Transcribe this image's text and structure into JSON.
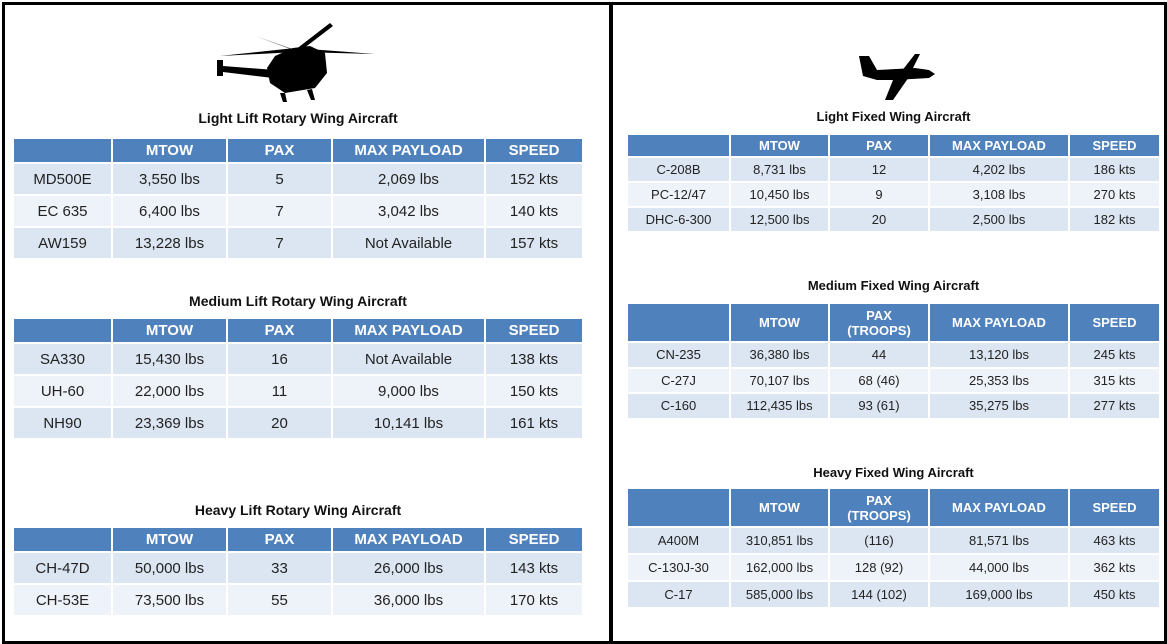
{
  "left": {
    "tables": [
      {
        "title": "Light Lift Rotary Wing Aircraft",
        "headers": [
          "MTOW",
          "PAX",
          "MAX PAYLOAD",
          "SPEED"
        ],
        "rows": [
          [
            "MD500E",
            "3,550 lbs",
            "5",
            "2,069 lbs",
            "152 kts"
          ],
          [
            "EC 635",
            "6,400 lbs",
            "7",
            "3,042 lbs",
            "140 kts"
          ],
          [
            "AW159",
            "13,228 lbs",
            "7",
            "Not Available",
            "157 kts"
          ]
        ]
      },
      {
        "title": "Medium Lift Rotary Wing Aircraft",
        "headers": [
          "MTOW",
          "PAX",
          "MAX PAYLOAD",
          "SPEED"
        ],
        "rows": [
          [
            "SA330",
            "15,430 lbs",
            "16",
            "Not Available",
            "138 kts"
          ],
          [
            "UH-60",
            "22,000 lbs",
            "11",
            "9,000 lbs",
            "150 kts"
          ],
          [
            "NH90",
            "23,369 lbs",
            "20",
            "10,141 lbs",
            "161 kts"
          ]
        ]
      },
      {
        "title": "Heavy Lift Rotary Wing Aircraft",
        "headers": [
          "MTOW",
          "PAX",
          "MAX PAYLOAD",
          "SPEED"
        ],
        "rows": [
          [
            "CH-47D",
            "50,000 lbs",
            "33",
            "26,000 lbs",
            "143 kts"
          ],
          [
            "CH-53E",
            "73,500 lbs",
            "55",
            "36,000 lbs",
            "170 kts"
          ]
        ]
      }
    ]
  },
  "right": {
    "tables": [
      {
        "title": "Light Fixed Wing Aircraft",
        "headers": [
          "MTOW",
          "PAX",
          "MAX PAYLOAD",
          "SPEED"
        ],
        "rows": [
          [
            "C-208B",
            "8,731 lbs",
            "12",
            "4,202 lbs",
            "186 kts"
          ],
          [
            "PC-12/47",
            "10,450 lbs",
            "9",
            "3,108 lbs",
            "270 kts"
          ],
          [
            "DHC-6-300",
            "12,500 lbs",
            "20",
            "2,500 lbs",
            "182 kts"
          ]
        ]
      },
      {
        "title": "Medium Fixed Wing Aircraft",
        "headers": [
          "MTOW",
          "PAX\n(TROOPS)",
          "MAX PAYLOAD",
          "SPEED"
        ],
        "rows": [
          [
            "CN-235",
            "36,380 lbs",
            "44",
            "13,120 lbs",
            "245 kts"
          ],
          [
            "C-27J",
            "70,107 lbs",
            "68 (46)",
            "25,353 lbs",
            "315 kts"
          ],
          [
            "C-160",
            "112,435 lbs",
            "93 (61)",
            "35,275 lbs",
            "277 kts"
          ]
        ]
      },
      {
        "title": "Heavy Fixed Wing Aircraft",
        "headers": [
          "MTOW",
          "PAX\n(TROOPS)",
          "MAX PAYLOAD",
          "SPEED"
        ],
        "rows": [
          [
            "A400M",
            "310,851 lbs",
            "(116)",
            "81,571 lbs",
            "463 kts"
          ],
          [
            "C-130J-30",
            "162,000 lbs",
            "128 (92)",
            "44,000 lbs",
            "362 kts"
          ],
          [
            "C-17",
            "585,000 lbs",
            "144 (102)",
            "169,000 lbs",
            "450 kts"
          ]
        ]
      }
    ]
  }
}
